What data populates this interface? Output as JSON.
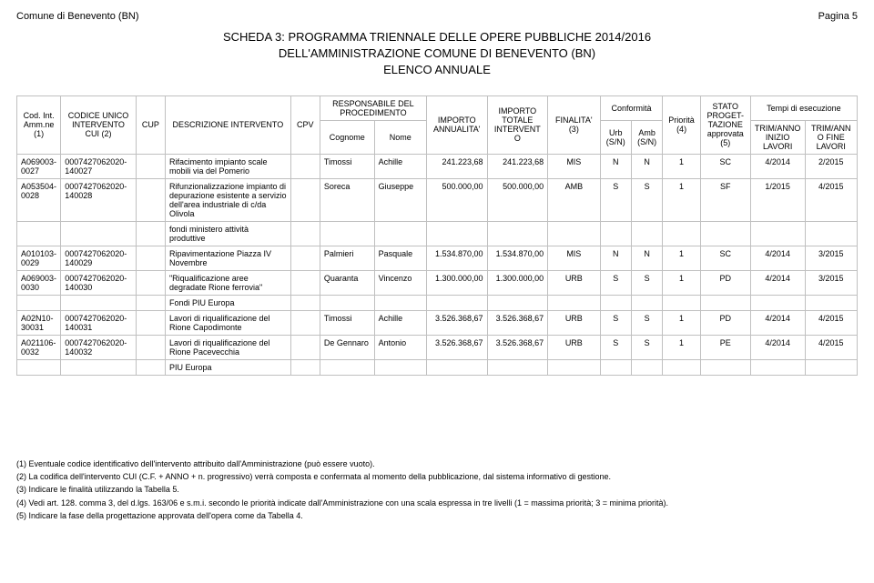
{
  "header": {
    "left": "Comune di Benevento (BN)",
    "right": "Pagina 5"
  },
  "title": {
    "line1": "SCHEDA 3: PROGRAMMA TRIENNALE DELLE OPERE PUBBLICHE 2014/2016",
    "line2": "DELL'AMMINISTRAZIONE COMUNE DI BENEVENTO (BN)",
    "line3": "ELENCO ANNUALE"
  },
  "columns": {
    "cod": "Cod. Int. Amm.ne (1)",
    "codiceUnico": "CODICE UNICO INTERVENTO CUI (2)",
    "cup": "CUP",
    "descr": "DESCRIZIONE INTERVENTO",
    "cpv": "CPV",
    "respGroup": "RESPONSABILE DEL PROCEDIMENTO",
    "cognome": "Cognome",
    "nome": "Nome",
    "impAnn": "IMPORTO ANNUALITA'",
    "impTot": "IMPORTO TOTALE INTERVENTO",
    "finalita": "FINALITA' (3)",
    "confGroup": "Conformità",
    "urb": "Urb (S/N)",
    "amb": "Amb (S/N)",
    "priorita": "Priorità (4)",
    "stato": "STATO PROGET-TAZIONE approvata (5)",
    "tempiGroup": "Tempi di esecuzione",
    "trimInizio": "TRIM/ANNO INIZIO LAVORI",
    "trimFine": "TRIM/ANNO FINE LAVORI"
  },
  "rows": [
    {
      "cod": "A069003-0027",
      "cui": "0007427062020-140027",
      "cup": "",
      "descr": "Rifacimento impianto scale mobili via del Pomerio",
      "cpv": "",
      "cognome": "Timossi",
      "nome": "Achille",
      "impAnn": "241.223,68",
      "impTot": "241.223,68",
      "finalita": "MIS",
      "urb": "N",
      "amb": "N",
      "priorita": "1",
      "stato": "SC",
      "trimInizio": "4/2014",
      "trimFine": "2/2015"
    },
    {
      "cod": "A053504-0028",
      "cui": "0007427062020-140028",
      "cup": "",
      "descr": "Rifunzionalizzazione impianto di depurazione esistente a servizio dell'area industriale di c/da Olivola",
      "cpv": "",
      "cognome": "Soreca",
      "nome": "Giuseppe",
      "impAnn": "500.000,00",
      "impTot": "500.000,00",
      "finalita": "AMB",
      "urb": "S",
      "amb": "S",
      "priorita": "1",
      "stato": "SF",
      "trimInizio": "1/2015",
      "trimFine": "4/2015"
    }
  ],
  "note1": "fondi ministero attività produttive",
  "rows2": [
    {
      "cod": "A010103-0029",
      "cui": "0007427062020-140029",
      "cup": "",
      "descr": "Ripavimentazione Piazza IV Novembre",
      "cpv": "",
      "cognome": "Palmieri",
      "nome": "Pasquale",
      "impAnn": "1.534.870,00",
      "impTot": "1.534.870,00",
      "finalita": "MIS",
      "urb": "N",
      "amb": "N",
      "priorita": "1",
      "stato": "SC",
      "trimInizio": "4/2014",
      "trimFine": "3/2015"
    },
    {
      "cod": "A069003-0030",
      "cui": "0007427062020-140030",
      "cup": "",
      "descr": "\"Riqualificazione aree degradate Rione ferrovia\"",
      "cpv": "",
      "cognome": "Quaranta",
      "nome": "Vincenzo",
      "impAnn": "1.300.000,00",
      "impTot": "1.300.000,00",
      "finalita": "URB",
      "urb": "S",
      "amb": "S",
      "priorita": "1",
      "stato": "PD",
      "trimInizio": "4/2014",
      "trimFine": "3/2015"
    }
  ],
  "note2": "Fondi PIU Europa",
  "rows3": [
    {
      "cod": "A02N10-30031",
      "cui": "0007427062020-140031",
      "cup": "",
      "descr": "Lavori di riqualificazione del Rione Capodimonte",
      "cpv": "",
      "cognome": "Timossi",
      "nome": "Achille",
      "impAnn": "3.526.368,67",
      "impTot": "3.526.368,67",
      "finalita": "URB",
      "urb": "S",
      "amb": "S",
      "priorita": "1",
      "stato": "PD",
      "trimInizio": "4/2014",
      "trimFine": "4/2015"
    },
    {
      "cod": "A021106-0032",
      "cui": "0007427062020-140032",
      "cup": "",
      "descr": "Lavori di riqualificazione del Rione Pacevecchia",
      "cpv": "",
      "cognome": "De Gennaro",
      "nome": "Antonio",
      "impAnn": "3.526.368,67",
      "impTot": "3.526.368,67",
      "finalita": "URB",
      "urb": "S",
      "amb": "S",
      "priorita": "1",
      "stato": "PE",
      "trimInizio": "4/2014",
      "trimFine": "4/2015"
    }
  ],
  "note3": "PIU Europa",
  "footnotes": [
    "(1) Eventuale codice identificativo dell'intervento attribuito dall'Amministrazione (può essere vuoto).",
    "(2) La codifica dell'intervento CUI (C.F. + ANNO + n. progressivo) verrà composta e confermata al momento della pubblicazione, dal sistema informativo di gestione.",
    "(3) Indicare le finalità utilizzando la Tabella 5.",
    "(4) Vedi art. 128. comma 3, del d.lgs. 163/06 e s.m.i. secondo le priorità indicate dall'Amministrazione con una scala espressa in tre livelli (1 = massima priorità; 3 = minima priorità).",
    "(5) Indicare la fase della progettazione approvata dell'opera come da Tabella 4."
  ],
  "style": {
    "border_color": "#c0c0c0",
    "font_family": "Arial",
    "base_fontsize": 9,
    "title_fontsize": 13
  }
}
